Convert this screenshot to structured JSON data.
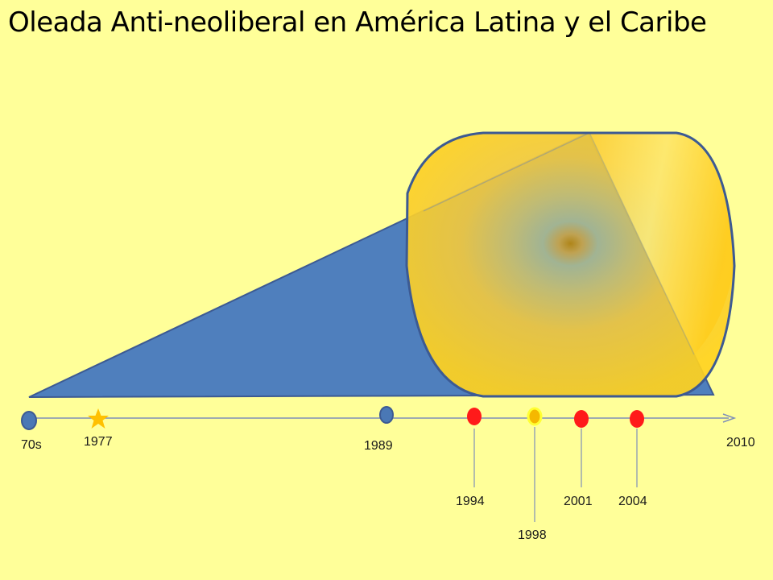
{
  "title": "Oleada Anti-neoliberal en América Latina y el Caribe",
  "colors": {
    "background": "#ffff99",
    "triangle": "#4f7fbd",
    "circle_outline": "#3c5a93",
    "circle_fill": "#f5c842",
    "blue_marker": "#4a78b5",
    "red_marker": "#ff1a1a",
    "star": "#ffc000",
    "timeline": "#7f8fb8"
  },
  "timeline": {
    "markers": [
      {
        "label": "70s",
        "kind": "blue-dot"
      },
      {
        "label": "1977",
        "kind": "star"
      },
      {
        "label": "1989",
        "kind": "blue-dot"
      },
      {
        "label": "1994",
        "kind": "red-dot"
      },
      {
        "label": "1998",
        "kind": "yellow-dot"
      },
      {
        "label": "2001",
        "kind": "red-dot"
      },
      {
        "label": "2004",
        "kind": "red-dot"
      }
    ],
    "end_label": "2010"
  }
}
